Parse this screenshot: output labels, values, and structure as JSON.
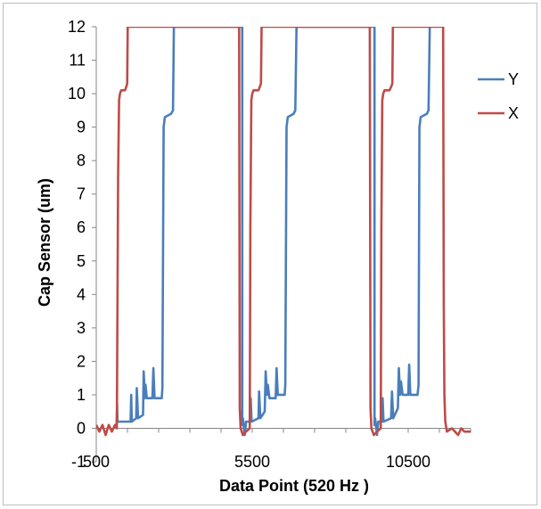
{
  "chart_data": {
    "type": "line",
    "title": "",
    "xlabel": "Data Point (520 Hz )",
    "ylabel": "Cap Sensor (um)",
    "xlim": [
      500,
      12500
    ],
    "ylim": [
      -1,
      12
    ],
    "grid": false,
    "legend_position": "right",
    "x_tick_labels": [
      "500",
      "5500",
      "10500"
    ],
    "x_ticks": [
      500,
      5500,
      10500
    ],
    "y_ticks": [
      -1,
      0,
      1,
      2,
      3,
      4,
      5,
      6,
      7,
      8,
      9,
      10,
      11,
      12
    ],
    "y_tick_labels": [
      "-1",
      "0",
      "1",
      "2",
      "3",
      "4",
      "5",
      "6",
      "7",
      "8",
      "9",
      "10",
      "11",
      "12"
    ],
    "series": [
      {
        "name": "Y",
        "color": "#4a7ebb",
        "points": [
          [
            1150,
            0.1
          ],
          [
            1170,
            0.7
          ],
          [
            1180,
            0.2
          ],
          [
            1600,
            0.2
          ],
          [
            1620,
            1.0
          ],
          [
            1640,
            0.2
          ],
          [
            1780,
            0.3
          ],
          [
            1800,
            1.2
          ],
          [
            1840,
            0.3
          ],
          [
            2000,
            0.4
          ],
          [
            2020,
            1.7
          ],
          [
            2060,
            0.9
          ],
          [
            2080,
            1.3
          ],
          [
            2120,
            0.9
          ],
          [
            2300,
            0.9
          ],
          [
            2330,
            1.8
          ],
          [
            2370,
            0.9
          ],
          [
            2600,
            0.9
          ],
          [
            2620,
            1.2
          ],
          [
            2660,
            9.0
          ],
          [
            2700,
            9.3
          ],
          [
            2900,
            9.4
          ],
          [
            2960,
            9.5
          ],
          [
            2990,
            12
          ],
          [
            3000,
            12
          ],
          [
            3000,
            12
          ],
          [
            5180,
            12
          ],
          [
            5180,
            0.1
          ],
          [
            5200,
            0.3
          ],
          [
            5260,
            -0.2
          ],
          [
            5300,
            0.2
          ],
          [
            5420,
            0.2
          ],
          [
            5450,
            0.9
          ],
          [
            5480,
            0.2
          ],
          [
            5700,
            0.3
          ],
          [
            5720,
            1.1
          ],
          [
            5760,
            0.3
          ],
          [
            5900,
            0.5
          ],
          [
            5930,
            1.7
          ],
          [
            5970,
            1.0
          ],
          [
            6000,
            1.3
          ],
          [
            6050,
            0.9
          ],
          [
            6250,
            0.9
          ],
          [
            6280,
            1.8
          ],
          [
            6320,
            1.0
          ],
          [
            6540,
            1.0
          ],
          [
            6560,
            1.3
          ],
          [
            6600,
            9.0
          ],
          [
            6640,
            9.3
          ],
          [
            6830,
            9.4
          ],
          [
            6880,
            9.5
          ],
          [
            6920,
            12
          ],
          [
            9420,
            12
          ],
          [
            9420,
            0.1
          ],
          [
            9440,
            0.3
          ],
          [
            9500,
            -0.2
          ],
          [
            9540,
            0.2
          ],
          [
            9650,
            0.2
          ],
          [
            9680,
            0.9
          ],
          [
            9710,
            0.2
          ],
          [
            9950,
            0.3
          ],
          [
            9980,
            1.1
          ],
          [
            10020,
            0.3
          ],
          [
            10170,
            0.6
          ],
          [
            10200,
            1.8
          ],
          [
            10240,
            1.0
          ],
          [
            10270,
            1.4
          ],
          [
            10320,
            1.0
          ],
          [
            10500,
            1.0
          ],
          [
            10530,
            1.9
          ],
          [
            10570,
            1.0
          ],
          [
            10800,
            1.0
          ],
          [
            10830,
            1.3
          ],
          [
            10860,
            9.0
          ],
          [
            10900,
            9.3
          ],
          [
            11100,
            9.4
          ],
          [
            11150,
            9.5
          ],
          [
            11190,
            12
          ]
        ]
      },
      {
        "name": "X",
        "color": "#be4b48",
        "points": [
          [
            500,
            0.1
          ],
          [
            600,
            -0.1
          ],
          [
            700,
            0.1
          ],
          [
            800,
            -0.2
          ],
          [
            900,
            0.1
          ],
          [
            1000,
            -0.1
          ],
          [
            1100,
            0.1
          ],
          [
            1160,
            0.0
          ],
          [
            1200,
            7.5
          ],
          [
            1230,
            9.8
          ],
          [
            1260,
            10.0
          ],
          [
            1300,
            10.1
          ],
          [
            1420,
            10.1
          ],
          [
            1460,
            10.2
          ],
          [
            1490,
            10.3
          ],
          [
            1510,
            12
          ],
          [
            1520,
            12
          ],
          [
            5080,
            12
          ],
          [
            5100,
            0.6
          ],
          [
            5130,
            0.0
          ],
          [
            5200,
            -0.2
          ],
          [
            5300,
            -0.1
          ],
          [
            5420,
            0.0
          ],
          [
            5440,
            6.0
          ],
          [
            5470,
            9.8
          ],
          [
            5500,
            10.0
          ],
          [
            5540,
            10.1
          ],
          [
            5700,
            10.1
          ],
          [
            5740,
            10.2
          ],
          [
            5780,
            10.3
          ],
          [
            5800,
            12
          ],
          [
            9270,
            12
          ],
          [
            9290,
            0.6
          ],
          [
            9320,
            0.0
          ],
          [
            9400,
            -0.2
          ],
          [
            9500,
            -0.1
          ],
          [
            9620,
            0.0
          ],
          [
            9640,
            6.0
          ],
          [
            9670,
            9.8
          ],
          [
            9700,
            10.0
          ],
          [
            9740,
            10.1
          ],
          [
            9900,
            10.1
          ],
          [
            9950,
            10.2
          ],
          [
            9990,
            10.3
          ],
          [
            10010,
            12
          ],
          [
            11620,
            12
          ],
          [
            11640,
            3.8
          ],
          [
            11660,
            1.0
          ],
          [
            11690,
            0.2
          ],
          [
            11740,
            -0.1
          ],
          [
            11900,
            0.0
          ],
          [
            12000,
            -0.1
          ],
          [
            12100,
            -0.2
          ],
          [
            12200,
            0.0
          ],
          [
            12300,
            -0.1
          ],
          [
            12400,
            -0.1
          ],
          [
            12500,
            -0.1
          ]
        ]
      }
    ]
  }
}
